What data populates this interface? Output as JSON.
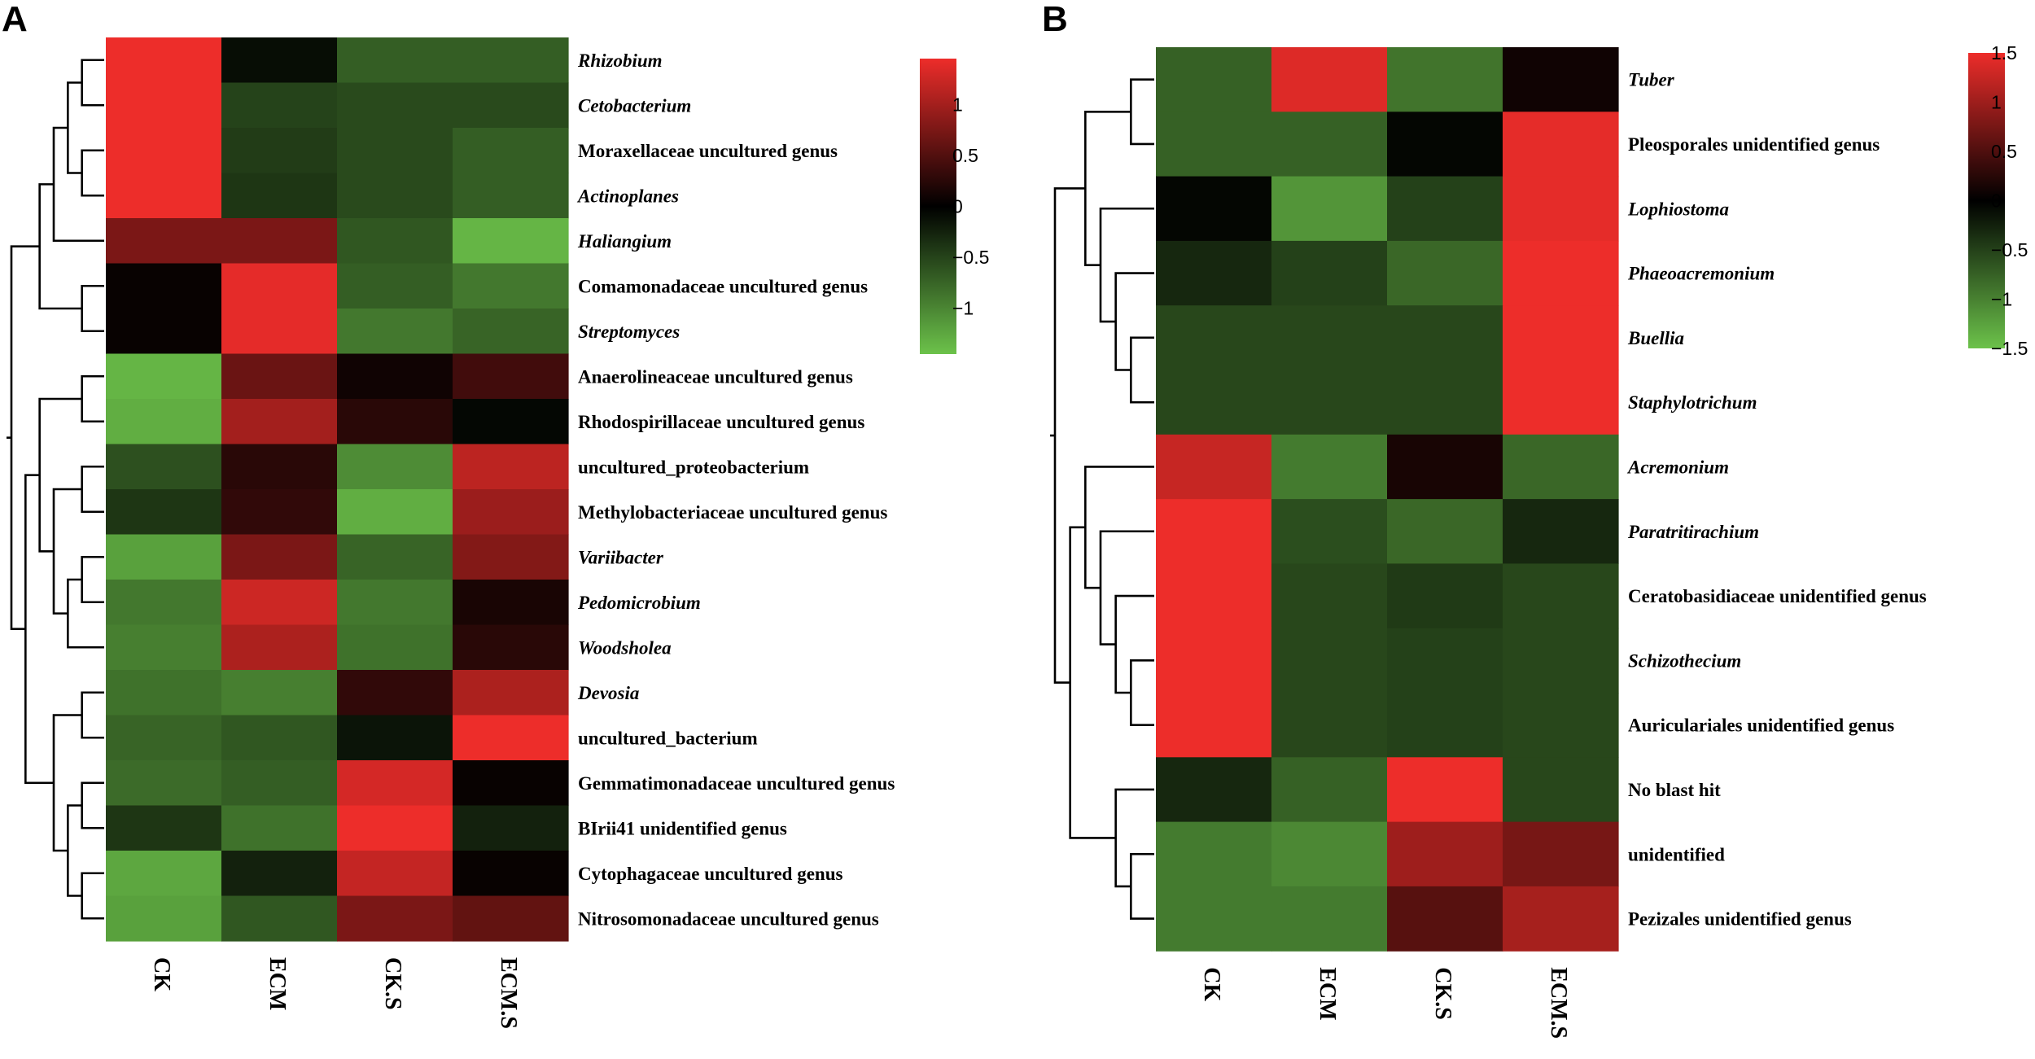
{
  "chart_data": [
    {
      "type": "heatmap",
      "panel": "A",
      "columns": [
        "CK",
        "ECM",
        "CK.S",
        "ECM.S"
      ],
      "rows": [
        {
          "label": "Rhizobium",
          "italic": true,
          "values": [
            1.45,
            -0.1,
            -0.7,
            -0.7
          ]
        },
        {
          "label": "Cetobacterium",
          "italic": true,
          "values": [
            1.45,
            -0.5,
            -0.55,
            -0.55
          ]
        },
        {
          "label": "Moraxellaceae uncultured genus",
          "italic": false,
          "values": [
            1.45,
            -0.45,
            -0.55,
            -0.7
          ]
        },
        {
          "label": "Actinoplanes",
          "italic": true,
          "values": [
            1.45,
            -0.4,
            -0.55,
            -0.7
          ]
        },
        {
          "label": "Haliangium",
          "italic": true,
          "values": [
            0.75,
            0.75,
            -0.65,
            -1.35
          ]
        },
        {
          "label": "Comamonadaceae uncultured genus",
          "italic": false,
          "values": [
            0.05,
            1.4,
            -0.7,
            -0.9
          ]
        },
        {
          "label": "Streptomyces",
          "italic": true,
          "values": [
            0.05,
            1.4,
            -0.9,
            -0.75
          ]
        },
        {
          "label": "Anaerolineaceae uncultured genus",
          "italic": false,
          "values": [
            -1.35,
            0.65,
            0.1,
            0.4
          ]
        },
        {
          "label": "Rhodospirillaceae uncultured genus",
          "italic": false,
          "values": [
            -1.3,
            1.0,
            0.25,
            -0.05
          ]
        },
        {
          "label": "uncultured_proteobacterium",
          "italic": false,
          "values": [
            -0.6,
            0.25,
            -1.05,
            1.15
          ]
        },
        {
          "label": "Methylobacteriaceae uncultured genus",
          "italic": false,
          "values": [
            -0.4,
            0.3,
            -1.3,
            0.95
          ]
        },
        {
          "label": "Variibacter",
          "italic": true,
          "values": [
            -1.2,
            0.75,
            -0.75,
            0.8
          ]
        },
        {
          "label": "Pedomicrobium",
          "italic": true,
          "values": [
            -0.9,
            1.25,
            -0.9,
            0.15
          ]
        },
        {
          "label": "Woodsholea",
          "italic": true,
          "values": [
            -0.95,
            1.05,
            -0.85,
            0.25
          ]
        },
        {
          "label": "Devosia",
          "italic": true,
          "values": [
            -0.85,
            -0.95,
            0.3,
            1.05
          ]
        },
        {
          "label": "uncultured_bacterium",
          "italic": false,
          "values": [
            -0.75,
            -0.65,
            -0.15,
            1.45
          ]
        },
        {
          "label": "Gemmatimonadaceae uncultured genus",
          "italic": false,
          "values": [
            -0.8,
            -0.7,
            1.3,
            0.05
          ]
        },
        {
          "label": "BIrii41 unidentified genus",
          "italic": false,
          "values": [
            -0.4,
            -0.85,
            1.45,
            -0.25
          ]
        },
        {
          "label": "Cytophagaceae uncultured genus",
          "italic": false,
          "values": [
            -1.25,
            -0.25,
            1.2,
            0.05
          ]
        },
        {
          "label": "Nitrosomonadaceae uncultured genus",
          "italic": false,
          "values": [
            -1.2,
            -0.65,
            0.75,
            0.6
          ]
        }
      ],
      "colorbar": {
        "min": -1.45,
        "max": 1.45,
        "ticks": [
          1,
          0.5,
          0,
          -0.5,
          -1
        ],
        "tick_labels": [
          "1",
          "0.5",
          "0",
          "−0.5",
          "−1"
        ]
      },
      "dendrogram_merges": [
        [
          0,
          1
        ],
        [
          2,
          3
        ],
        [
          20,
          21
        ],
        [
          22,
          4
        ],
        [
          5,
          6
        ],
        [
          24,
          23
        ],
        [
          7,
          8
        ],
        [
          9,
          10
        ],
        [
          11,
          12
        ],
        [
          28,
          13
        ],
        [
          27,
          29
        ],
        [
          26,
          30
        ],
        [
          14,
          15
        ],
        [
          16,
          17
        ],
        [
          18,
          19
        ],
        [
          33,
          34
        ],
        [
          32,
          35
        ],
        [
          31,
          36
        ],
        [
          25,
          37
        ]
      ]
    },
    {
      "type": "heatmap",
      "panel": "B",
      "columns": [
        "CK",
        "ECM",
        "CK.S",
        "ECM.S"
      ],
      "rows": [
        {
          "label": "Tuber",
          "italic": true,
          "values": [
            -0.75,
            1.4,
            -0.9,
            0.1
          ]
        },
        {
          "label": "Pleosporales unidentified genus",
          "italic": false,
          "values": [
            -0.75,
            -0.75,
            -0.05,
            1.45
          ]
        },
        {
          "label": "Lophiostoma",
          "italic": true,
          "values": [
            -0.05,
            -1.15,
            -0.5,
            1.45
          ]
        },
        {
          "label": "Phaeoacremonium",
          "italic": true,
          "values": [
            -0.3,
            -0.5,
            -0.8,
            1.5
          ]
        },
        {
          "label": "Buellia",
          "italic": true,
          "values": [
            -0.55,
            -0.55,
            -0.55,
            1.5
          ]
        },
        {
          "label": "Staphylotrichum",
          "italic": true,
          "values": [
            -0.55,
            -0.55,
            -0.55,
            1.5
          ]
        },
        {
          "label": "Acremonium",
          "italic": true,
          "values": [
            1.25,
            -0.95,
            0.15,
            -0.8
          ]
        },
        {
          "label": "Paratritirachium",
          "italic": true,
          "values": [
            1.5,
            -0.6,
            -0.8,
            -0.3
          ]
        },
        {
          "label": "Ceratobasidiaceae unidentified genus",
          "italic": false,
          "values": [
            1.5,
            -0.55,
            -0.45,
            -0.55
          ]
        },
        {
          "label": "Schizothecium",
          "italic": true,
          "values": [
            1.5,
            -0.55,
            -0.5,
            -0.55
          ]
        },
        {
          "label": "Auriculariales unidentified genus",
          "italic": false,
          "values": [
            1.5,
            -0.55,
            -0.5,
            -0.55
          ]
        },
        {
          "label": "No blast hit",
          "italic": false,
          "values": [
            -0.3,
            -0.75,
            1.5,
            -0.55
          ]
        },
        {
          "label": "unidentified",
          "italic": false,
          "values": [
            -0.95,
            -1.05,
            1.0,
            0.75
          ]
        },
        {
          "label": "Pezizales unidentified genus",
          "italic": false,
          "values": [
            -0.95,
            -0.95,
            0.55,
            1.05
          ]
        }
      ],
      "colorbar": {
        "min": -1.5,
        "max": 1.5,
        "ticks": [
          1.5,
          1,
          0.5,
          0,
          -0.5,
          -1,
          -1.5
        ],
        "tick_labels": [
          "1.5",
          "1",
          "0.5",
          "0",
          "−0.5",
          "−1",
          "−1.5"
        ]
      },
      "dendrogram_merges": [
        [
          0,
          1
        ],
        [
          4,
          5
        ],
        [
          3,
          15
        ],
        [
          2,
          16
        ],
        [
          14,
          17
        ],
        [
          9,
          10
        ],
        [
          8,
          19
        ],
        [
          7,
          20
        ],
        [
          6,
          21
        ],
        [
          12,
          13
        ],
        [
          11,
          23
        ],
        [
          22,
          24
        ],
        [
          18,
          25
        ]
      ]
    }
  ],
  "colors": {
    "low": "#6CC24A",
    "mid": "#000000",
    "high": "#ED2D2A"
  },
  "panels": [
    {
      "letter": "A"
    },
    {
      "letter": "B"
    }
  ]
}
